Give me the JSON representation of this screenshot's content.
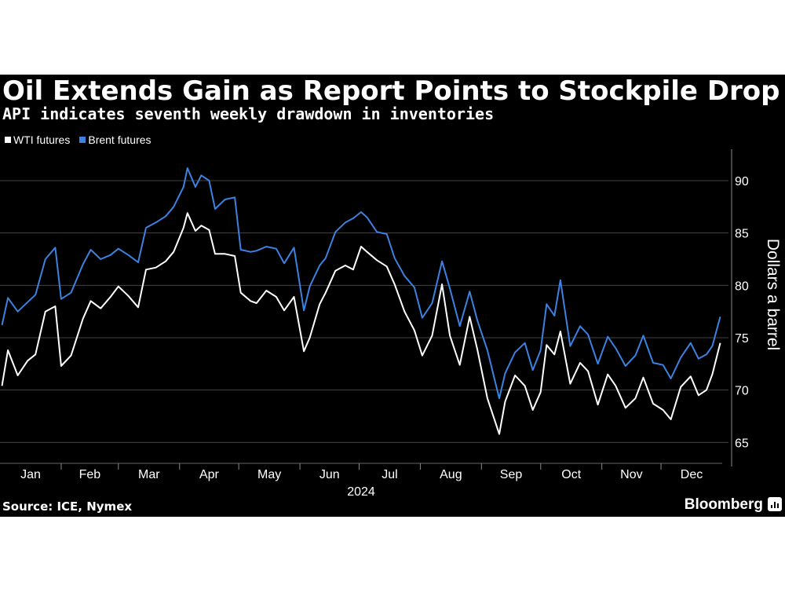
{
  "header": {
    "title": "Oil Extends Gain as Report Points to Stockpile Drop",
    "subtitle": "API indicates seventh weekly drawdown in inventories"
  },
  "footer": {
    "source": "Source: ICE, Nymex",
    "brand": "Bloomberg"
  },
  "colors": {
    "background": "#000000",
    "wti": "#ffffff",
    "brent": "#3c82e0",
    "grid": "#444444",
    "text": "#ffffff"
  },
  "chart_data": {
    "type": "line",
    "title": "Oil Extends Gain as Report Points to Stockpile Drop",
    "subtitle": "API indicates seventh weekly drawdown in inventories",
    "ylabel": "Dollars a barrel",
    "ylim": [
      63,
      93
    ],
    "y_ticks": [
      "65",
      "70",
      "75",
      "80",
      "85",
      "90"
    ],
    "y_axis_position": "right",
    "grid": "horizontal",
    "legend": "top-left",
    "x_ticks": [
      "Jan",
      "Feb",
      "Mar",
      "Apr",
      "May",
      "Jun",
      "Jul",
      "Aug",
      "Sep",
      "Oct",
      "Nov",
      "Dec"
    ],
    "x_year_label": "2024",
    "x": [
      "2024-01-02",
      "2024-01-05",
      "2024-01-10",
      "2024-01-15",
      "2024-01-19",
      "2024-01-24",
      "2024-01-29",
      "2024-02-01",
      "2024-02-06",
      "2024-02-12",
      "2024-02-16",
      "2024-02-21",
      "2024-02-26",
      "2024-03-01",
      "2024-03-06",
      "2024-03-11",
      "2024-03-15",
      "2024-03-20",
      "2024-03-25",
      "2024-03-29",
      "2024-04-03",
      "2024-04-05",
      "2024-04-09",
      "2024-04-12",
      "2024-04-16",
      "2024-04-19",
      "2024-04-24",
      "2024-04-29",
      "2024-05-02",
      "2024-05-07",
      "2024-05-10",
      "2024-05-15",
      "2024-05-20",
      "2024-05-24",
      "2024-05-29",
      "2024-06-03",
      "2024-06-06",
      "2024-06-11",
      "2024-06-14",
      "2024-06-19",
      "2024-06-24",
      "2024-06-28",
      "2024-07-02",
      "2024-07-05",
      "2024-07-10",
      "2024-07-15",
      "2024-07-19",
      "2024-07-24",
      "2024-07-29",
      "2024-08-02",
      "2024-08-07",
      "2024-08-12",
      "2024-08-16",
      "2024-08-21",
      "2024-08-26",
      "2024-08-30",
      "2024-09-04",
      "2024-09-10",
      "2024-09-13",
      "2024-09-18",
      "2024-09-23",
      "2024-09-27",
      "2024-10-01",
      "2024-10-04",
      "2024-10-08",
      "2024-10-11",
      "2024-10-16",
      "2024-10-21",
      "2024-10-25",
      "2024-10-30",
      "2024-11-04",
      "2024-11-08",
      "2024-11-13",
      "2024-11-18",
      "2024-11-22",
      "2024-11-27",
      "2024-12-02",
      "2024-12-06",
      "2024-12-11",
      "2024-12-16",
      "2024-12-20",
      "2024-12-24",
      "2024-12-27",
      "2024-12-31"
    ],
    "series": [
      {
        "name": "WTI futures",
        "color": "#ffffff",
        "values": [
          70.4,
          73.8,
          71.4,
          72.8,
          73.4,
          77.5,
          78.0,
          72.3,
          73.3,
          76.8,
          78.5,
          77.8,
          78.9,
          79.9,
          79.0,
          77.9,
          81.5,
          81.7,
          82.3,
          83.2,
          85.5,
          86.9,
          85.2,
          85.7,
          85.3,
          83.0,
          83.0,
          82.8,
          79.3,
          78.5,
          78.3,
          79.5,
          78.9,
          77.6,
          78.9,
          73.7,
          75.0,
          78.2,
          79.3,
          81.4,
          81.9,
          81.5,
          83.7,
          83.2,
          82.4,
          81.8,
          80.1,
          77.5,
          75.7,
          73.3,
          75.2,
          80.1,
          75.2,
          72.4,
          77.0,
          73.8,
          69.2,
          65.8,
          68.9,
          71.4,
          70.4,
          68.1,
          69.8,
          74.3,
          73.4,
          75.6,
          70.6,
          72.6,
          71.8,
          68.6,
          71.5,
          70.4,
          68.3,
          69.2,
          71.2,
          68.7,
          68.1,
          67.2,
          70.3,
          71.3,
          69.5,
          70.0,
          71.5,
          74.5
        ]
      },
      {
        "name": "Brent futures",
        "color": "#3c82e0",
        "values": [
          76.2,
          78.8,
          77.5,
          78.4,
          79.1,
          82.5,
          83.6,
          78.7,
          79.3,
          82.0,
          83.4,
          82.5,
          82.9,
          83.5,
          82.9,
          82.2,
          85.5,
          86.0,
          86.6,
          87.5,
          89.4,
          91.2,
          89.4,
          90.5,
          90.0,
          87.3,
          88.2,
          88.4,
          83.4,
          83.2,
          83.3,
          83.7,
          83.5,
          82.1,
          83.6,
          77.6,
          79.9,
          81.9,
          82.6,
          85.1,
          86.0,
          86.4,
          87.0,
          86.5,
          85.1,
          84.9,
          82.6,
          80.9,
          79.8,
          76.9,
          78.3,
          82.3,
          79.7,
          76.1,
          79.4,
          76.6,
          73.8,
          69.2,
          71.6,
          73.6,
          74.5,
          71.9,
          73.8,
          78.2,
          77.1,
          80.5,
          74.2,
          76.1,
          75.3,
          72.5,
          75.1,
          74.0,
          72.3,
          73.3,
          75.2,
          72.6,
          72.4,
          71.1,
          73.1,
          74.5,
          73.0,
          73.4,
          74.2,
          77.0
        ]
      }
    ]
  }
}
